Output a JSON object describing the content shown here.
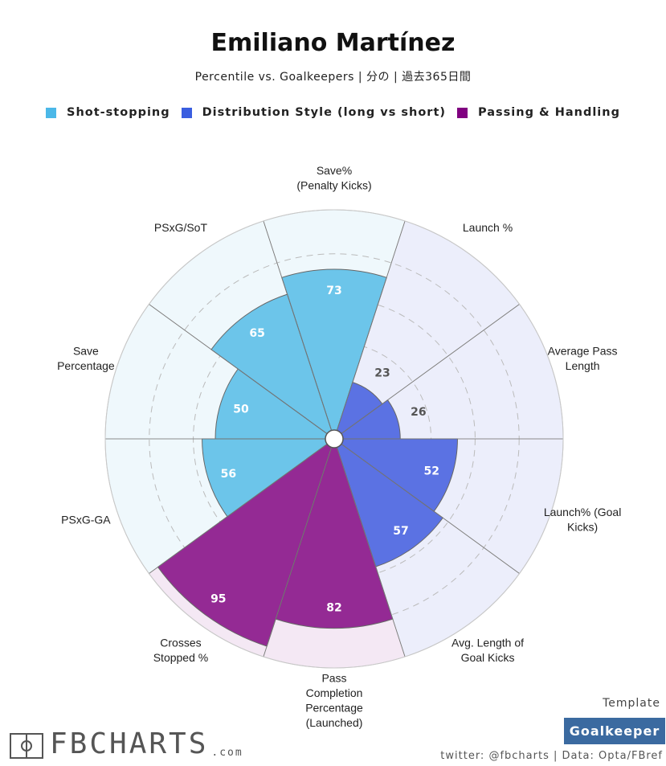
{
  "title": "Emiliano Martínez",
  "subtitle": "Percentile vs. Goalkeepers | 分の | 過去365日間",
  "legend": [
    {
      "label": "Shot-stopping",
      "color": "#4bb8e8"
    },
    {
      "label": "Distribution Style (long vs short)",
      "color": "#3a5ee0"
    },
    {
      "label": "Passing & Handling",
      "color": "#800080"
    }
  ],
  "chart_data": {
    "type": "polar-bar",
    "range": [
      0,
      100
    ],
    "categories": [
      {
        "label": "Save%\n(Penalty Kicks)",
        "value": 73,
        "group": "Shot-stopping"
      },
      {
        "label": "Launch %",
        "value": 23,
        "group": "Distribution Style (long vs short)"
      },
      {
        "label": "Average Pass\nLength",
        "value": 26,
        "group": "Distribution Style (long vs short)"
      },
      {
        "label": "Launch% (Goal\nKicks)",
        "value": 52,
        "group": "Distribution Style (long vs short)"
      },
      {
        "label": "Avg. Length of\nGoal Kicks",
        "value": 57,
        "group": "Distribution Style (long vs short)"
      },
      {
        "label": "Pass\nCompletion\nPercentage\n(Launched)",
        "value": 82,
        "group": "Passing & Handling"
      },
      {
        "label": "Crosses\nStopped %",
        "value": 95,
        "group": "Passing & Handling"
      },
      {
        "label": "PSxG-GA",
        "value": 56,
        "group": "Shot-stopping"
      },
      {
        "label": "Save\nPercentage",
        "value": 50,
        "group": "Shot-stopping"
      },
      {
        "label": "PSxG/SoT",
        "value": 65,
        "group": "Shot-stopping"
      }
    ],
    "group_colors": {
      "Shot-stopping": {
        "bar": "#6cc5ea",
        "bg": "#eff8fc",
        "text": "#ffffff"
      },
      "Distribution Style (long vs short)": {
        "bar": "#5b72e3",
        "bg": "#eceefb",
        "text": "#ffffff"
      },
      "Passing & Handling": {
        "bar": "#942a94",
        "bg": "#f4e8f4",
        "text": "#ffffff"
      }
    },
    "low_value_text_color": "#555555"
  },
  "branding": {
    "logo": "FBCHARTS",
    "logo_suffix": ".com",
    "template_label": "Template",
    "template_name": "Goalkeeper",
    "credit": "twitter: @fbcharts | Data: Opta/FBref"
  }
}
